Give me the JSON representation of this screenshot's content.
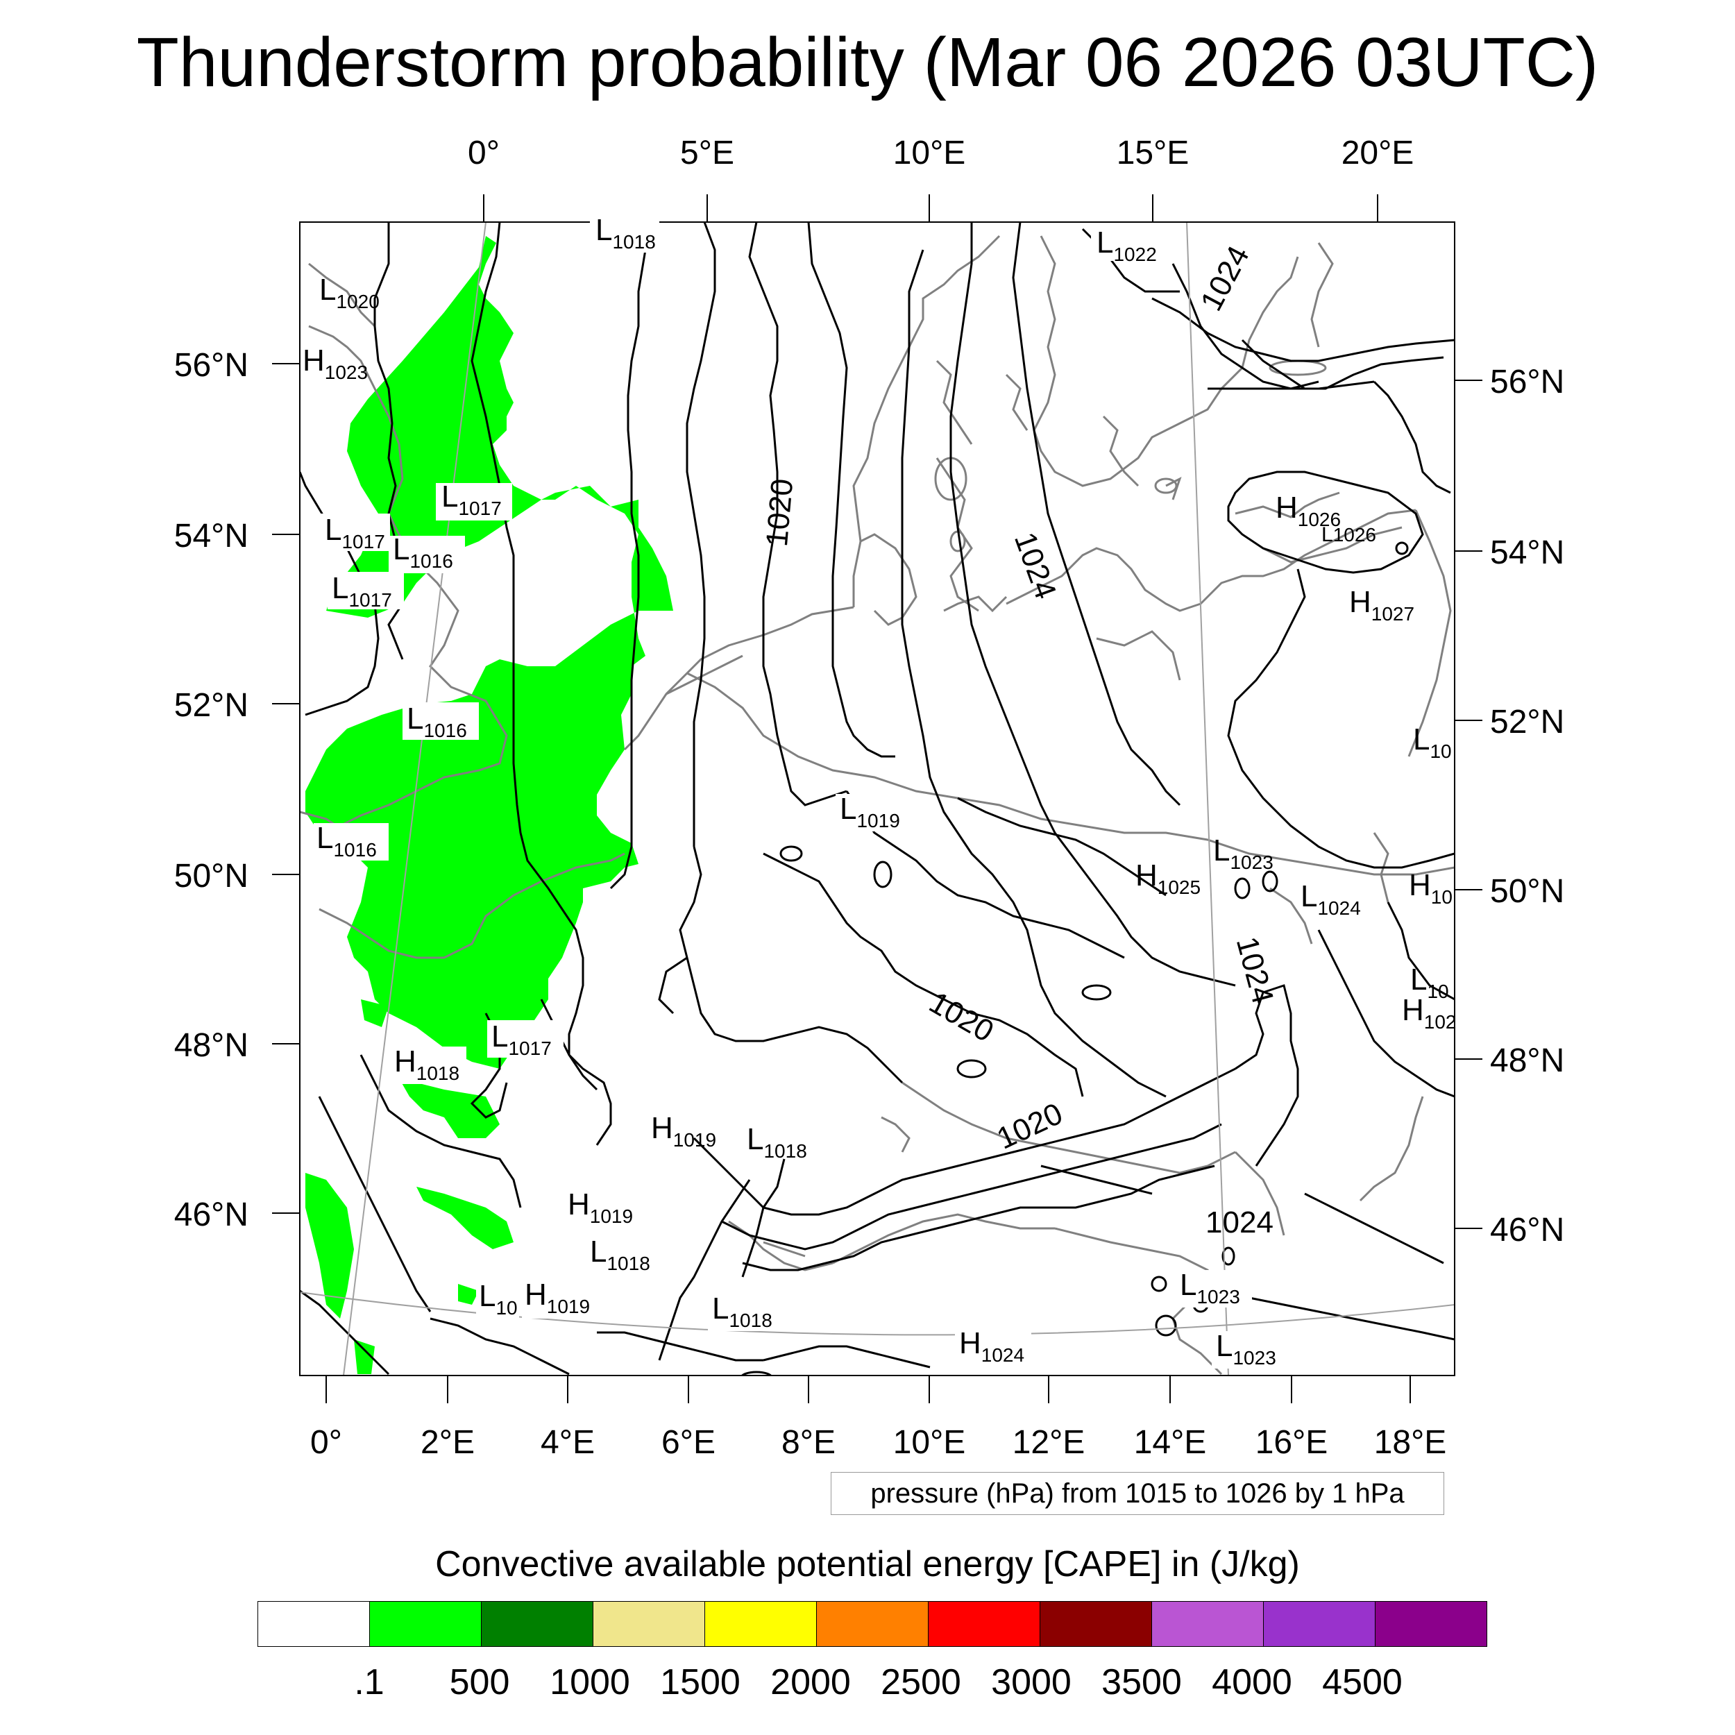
{
  "title": "Thunderstorm probability (Mar 06 2026 03UTC)",
  "top_lon_labels": [
    "0°",
    "5°E",
    "10°E",
    "15°E",
    "20°E"
  ],
  "bottom_lon_labels": [
    "0°",
    "2°E",
    "4°E",
    "6°E",
    "8°E",
    "10°E",
    "12°E",
    "14°E",
    "16°E",
    "18°E"
  ],
  "left_lat_labels": [
    "56°N",
    "54°N",
    "52°N",
    "50°N",
    "48°N",
    "46°N"
  ],
  "right_lat_labels": [
    "56°N",
    "54°N",
    "52°N",
    "50°N",
    "48°N",
    "46°N"
  ],
  "pressure_note": "pressure (hPa) from 1015 to 1026 by 1 hPa",
  "cape_title": "Convective available potential energy [CAPE] in (J/kg)",
  "colorbar": {
    "colors": [
      "#ffffff",
      "#00ff00",
      "#008000",
      "#f0e68c",
      "#ffff00",
      "#ff8000",
      "#ff0000",
      "#8b0000",
      "#ba55d3",
      "#9932cc",
      "#8b008b"
    ],
    "labels": [
      ".1",
      "500",
      "1000",
      "1500",
      "2000",
      "2500",
      "3000",
      "3500",
      "4000",
      "4500"
    ]
  },
  "pressure_centers": [
    {
      "type": "L",
      "value": "1018"
    },
    {
      "type": "L",
      "value": "1022"
    },
    {
      "type": "L",
      "value": "1020"
    },
    {
      "type": "H",
      "value": "1023"
    },
    {
      "type": "L",
      "value": "1017"
    },
    {
      "type": "L",
      "value": "1017"
    },
    {
      "type": "L",
      "value": "1016"
    },
    {
      "type": "L",
      "value": "1017"
    },
    {
      "type": "L",
      "value": "1016"
    },
    {
      "type": "L",
      "value": "1016"
    },
    {
      "type": "L",
      "value": "1019"
    },
    {
      "type": "H",
      "value": "1026"
    },
    {
      "type": "L",
      "value": "1026"
    },
    {
      "type": "H",
      "value": "1027"
    },
    {
      "type": "L",
      "value": "10"
    },
    {
      "type": "H",
      "value": "1025"
    },
    {
      "type": "L",
      "value": "1023"
    },
    {
      "type": "L",
      "value": "1024"
    },
    {
      "type": "H",
      "value": "10"
    },
    {
      "type": "L",
      "value": "10"
    },
    {
      "type": "H",
      "value": "102"
    },
    {
      "type": "L",
      "value": "1017"
    },
    {
      "type": "H",
      "value": "1018"
    },
    {
      "type": "H",
      "value": "1019"
    },
    {
      "type": "L",
      "value": "1018"
    },
    {
      "type": "H",
      "value": "1019"
    },
    {
      "type": "L",
      "value": "1018"
    },
    {
      "type": "L",
      "value": "10"
    },
    {
      "type": "H",
      "value": "1019"
    },
    {
      "type": "L",
      "value": "1018"
    },
    {
      "type": "H",
      "value": "1024"
    },
    {
      "type": "L",
      "value": "1023"
    },
    {
      "type": "L",
      "value": "1023"
    }
  ],
  "contour_labels": [
    "1020",
    "1024",
    "1024",
    "1020",
    "1020",
    "1024",
    "1024"
  ]
}
